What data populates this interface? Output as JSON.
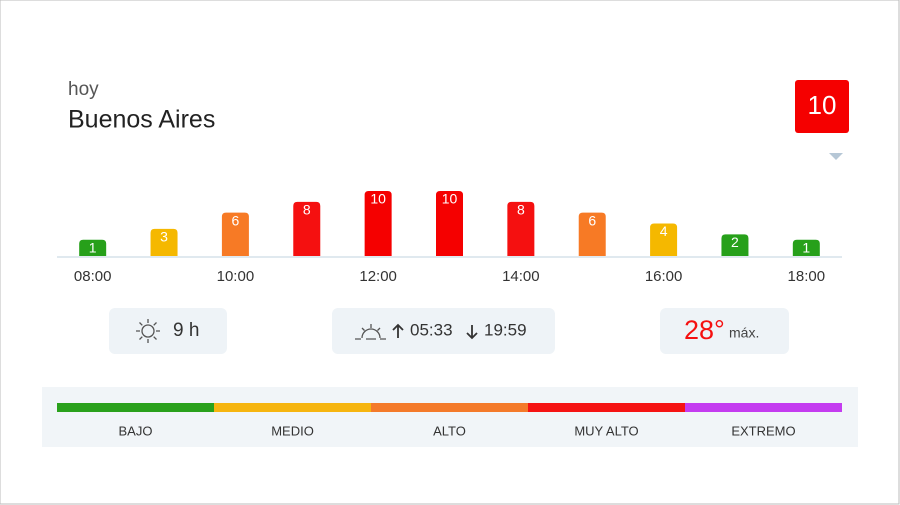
{
  "header": {
    "subtitle": "hoy",
    "title": "Buenos Aires"
  },
  "current_index": 10,
  "chart_data": {
    "type": "bar",
    "categories": [
      "08:00",
      null,
      "10:00",
      null,
      "12:00",
      null,
      "14:00",
      null,
      "16:00",
      null,
      "18:00"
    ],
    "values": [
      1,
      3,
      6,
      8,
      10,
      10,
      8,
      6,
      4,
      2,
      1
    ],
    "colors": [
      "#27a01a",
      "#f5b800",
      "#f77a25",
      "#f51010",
      "#f50000",
      "#f50000",
      "#f51010",
      "#f77a25",
      "#f5b800",
      "#27a01a",
      "#27a01a"
    ],
    "ylim": [
      -2,
      10
    ]
  },
  "info": {
    "sun_hours": "9 h",
    "sunrise": "05:33",
    "sunset": "19:59",
    "max_temp": "28°",
    "max_label": "máx."
  },
  "scale": [
    {
      "name": "BAJO",
      "color": "#2aa11c"
    },
    {
      "name": "MEDIO",
      "color": "#f6b510"
    },
    {
      "name": "ALTO",
      "color": "#f47a2a"
    },
    {
      "name": "MUY ALTO",
      "color": "#f51313"
    },
    {
      "name": "EXTREMO",
      "color": "#c43cf0"
    }
  ]
}
